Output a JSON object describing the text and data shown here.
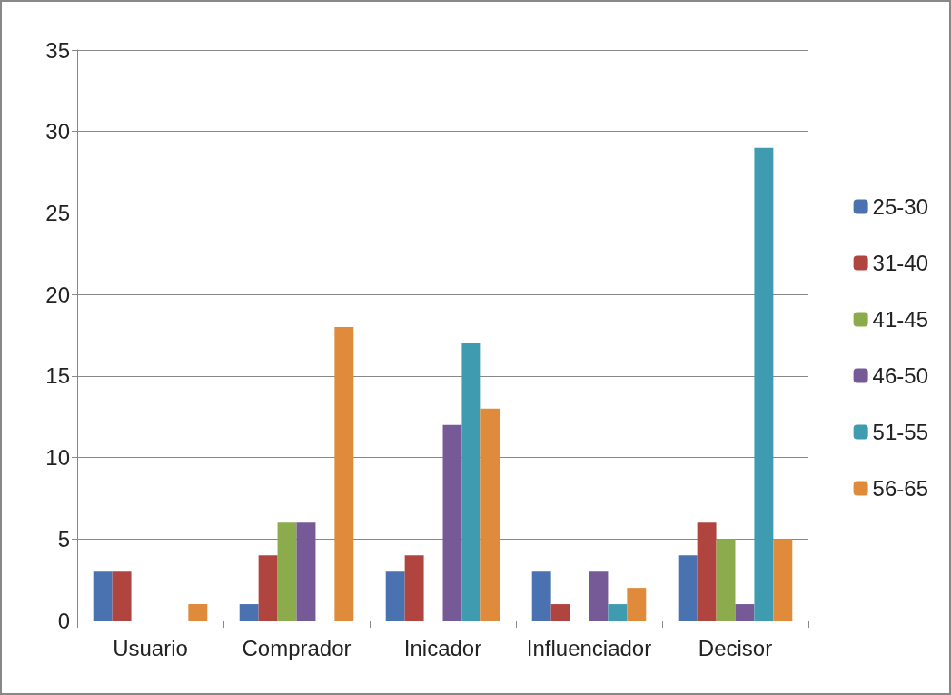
{
  "chart_data": {
    "type": "bar",
    "categories": [
      "Usuario",
      "Comprador",
      "Inicador",
      "Influenciador",
      "Decisor"
    ],
    "series": [
      {
        "name": "25-30",
        "color": "#4a72b0",
        "values": [
          3,
          1,
          3,
          3,
          4
        ]
      },
      {
        "name": "31-40",
        "color": "#b04540",
        "values": [
          3,
          4,
          4,
          1,
          6
        ]
      },
      {
        "name": "41-45",
        "color": "#8cab4c",
        "values": [
          0,
          6,
          0,
          0,
          5
        ]
      },
      {
        "name": "46-50",
        "color": "#765a98",
        "values": [
          0,
          6,
          12,
          3,
          1
        ]
      },
      {
        "name": "51-55",
        "color": "#3f9bb0",
        "values": [
          0,
          0,
          17,
          1,
          29
        ]
      },
      {
        "name": "56-65",
        "color": "#e08a3c",
        "values": [
          1,
          18,
          13,
          2,
          5
        ]
      }
    ],
    "ylim": [
      0,
      35
    ],
    "yticks": [
      0,
      5,
      10,
      15,
      20,
      25,
      30,
      35
    ],
    "grid": "y",
    "legend": "right"
  }
}
